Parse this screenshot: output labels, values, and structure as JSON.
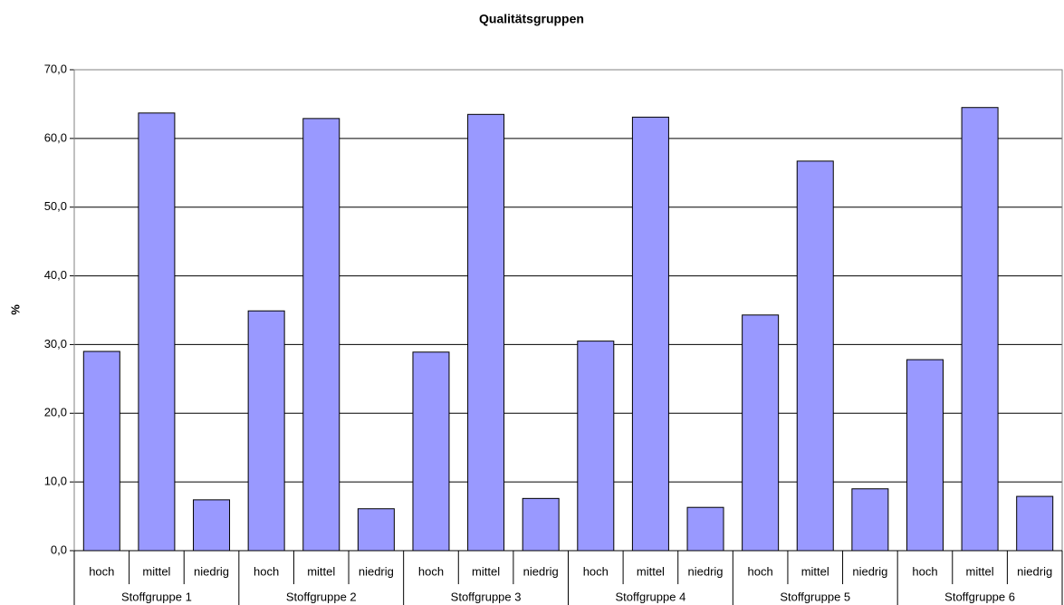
{
  "chart_data": {
    "type": "bar",
    "title": "Qualitätsgruppen",
    "y_label": "%",
    "categories": [
      "hoch",
      "mittel",
      "niedrig",
      "hoch",
      "mittel",
      "niedrig",
      "hoch",
      "mittel",
      "niedrig",
      "hoch",
      "mittel",
      "niedrig",
      "hoch",
      "mittel",
      "niedrig",
      "hoch",
      "mittel",
      "niedrig"
    ],
    "category_groups": [
      "Stoffgruppe 1",
      "Stoffgruppe 2",
      "Stoffgruppe 3",
      "Stoffgruppe 4",
      "Stoffgruppe 5",
      "Stoffgruppe 6"
    ],
    "values": [
      29.0,
      63.7,
      7.4,
      34.9,
      62.9,
      6.1,
      28.9,
      63.5,
      7.6,
      30.5,
      63.1,
      6.3,
      34.3,
      56.7,
      9.0,
      27.8,
      64.5,
      7.9
    ],
    "color": "#9999ff",
    "ylim": [
      0,
      70
    ],
    "yticks": [
      {
        "value": 0,
        "label": "0,0"
      },
      {
        "value": 10,
        "label": "10,0"
      },
      {
        "value": 20,
        "label": "20,0"
      },
      {
        "value": 30,
        "label": "30,0"
      },
      {
        "value": 40,
        "label": "40,0"
      },
      {
        "value": 50,
        "label": "50,0"
      },
      {
        "value": 60,
        "label": "60,0"
      },
      {
        "value": 70,
        "label": "70,0"
      }
    ],
    "grid": true
  }
}
